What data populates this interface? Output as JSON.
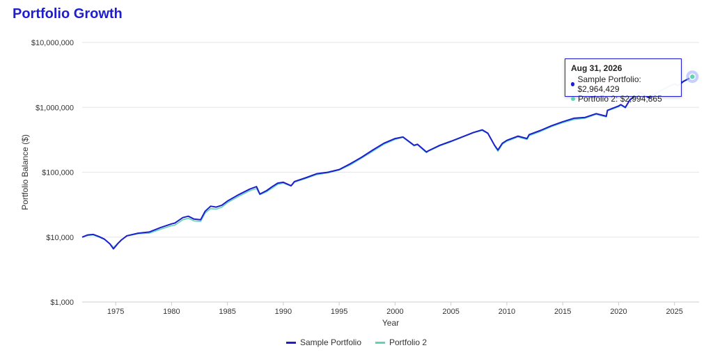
{
  "title": "Portfolio Growth",
  "colors": {
    "title": "#1e1ecf",
    "series1": "#1e1ecf",
    "series2": "#5fd3b3",
    "grid": "#e6e6e6"
  },
  "tooltip": {
    "date": "Aug 31, 2026",
    "rows": [
      {
        "label": "Sample Portfolio: $2,964,429",
        "color": "#1e1ecf"
      },
      {
        "label": "Portfolio 2: $2,994,865",
        "color": "#5fd3b3"
      }
    ]
  },
  "legend": [
    {
      "label": "Sample Portfolio",
      "color": "#1e1ecf"
    },
    {
      "label": "Portfolio 2",
      "color": "#5fd3b3"
    }
  ],
  "chart_data": {
    "type": "line",
    "title": "Portfolio Growth",
    "xlabel": "Year",
    "ylabel": "Portfolio Balance ($)",
    "yscale": "log",
    "ylim": [
      1000,
      10000000
    ],
    "xlim": [
      1972,
      2027.2
    ],
    "yticks": [
      {
        "value": 1000,
        "label": "$1,000"
      },
      {
        "value": 10000,
        "label": "$10,000"
      },
      {
        "value": 100000,
        "label": "$100,000"
      },
      {
        "value": 1000000,
        "label": "$1,000,000"
      },
      {
        "value": 10000000,
        "label": "$10,000,000"
      }
    ],
    "xticks": [
      1975,
      1980,
      1985,
      1990,
      1995,
      2000,
      2005,
      2010,
      2015,
      2020,
      2025
    ],
    "grid": true,
    "legend_position": "bottom",
    "series": [
      {
        "name": "Sample Portfolio",
        "x": [
          1972.0,
          1972.5,
          1973.0,
          1973.5,
          1974.0,
          1974.5,
          1974.8,
          1975.2,
          1975.5,
          1976.0,
          1977.0,
          1978.0,
          1979.0,
          1980.0,
          1980.3,
          1981.0,
          1981.5,
          1982.0,
          1982.6,
          1983.0,
          1983.5,
          1984.0,
          1984.5,
          1985.0,
          1986.0,
          1987.0,
          1987.6,
          1987.9,
          1988.5,
          1989.0,
          1989.5,
          1990.0,
          1990.7,
          1991.0,
          1992.0,
          1993.0,
          1994.0,
          1995.0,
          1996.0,
          1997.0,
          1998.0,
          1999.0,
          2000.0,
          2000.7,
          2001.0,
          2001.7,
          2002.0,
          2002.8,
          2003.0,
          2004.0,
          2005.0,
          2006.0,
          2007.0,
          2007.8,
          2008.3,
          2008.9,
          2009.2,
          2009.6,
          2010.0,
          2011.0,
          2011.8,
          2012.0,
          2013.0,
          2014.0,
          2015.0,
          2016.0,
          2017.0,
          2018.0,
          2018.9,
          2019.0,
          2020.0,
          2020.2,
          2020.6,
          2021.0,
          2021.9,
          2022.2,
          2022.7,
          2023.0,
          2024.0,
          2025.0,
          2025.3,
          2025.8,
          2026.6
        ],
        "y": [
          10000,
          10800,
          11000,
          10200,
          9300,
          7800,
          6600,
          8000,
          9000,
          10500,
          11500,
          12000,
          14000,
          16000,
          16500,
          20000,
          21000,
          19000,
          18500,
          25000,
          30000,
          29000,
          31000,
          36000,
          45000,
          55000,
          60000,
          46000,
          52000,
          60000,
          68000,
          70000,
          62000,
          72000,
          82000,
          95000,
          100000,
          110000,
          135000,
          170000,
          220000,
          280000,
          330000,
          350000,
          320000,
          260000,
          270000,
          205000,
          215000,
          260000,
          300000,
          350000,
          410000,
          450000,
          400000,
          260000,
          220000,
          280000,
          310000,
          360000,
          330000,
          380000,
          440000,
          520000,
          600000,
          680000,
          700000,
          800000,
          730000,
          900000,
          1050000,
          1100000,
          1000000,
          1300000,
          1700000,
          1600000,
          1400000,
          1500000,
          1900000,
          2300000,
          2150000,
          2500000,
          2964429
        ]
      },
      {
        "name": "Portfolio 2",
        "x": [
          1972.0,
          1972.5,
          1973.0,
          1973.5,
          1974.0,
          1974.5,
          1974.8,
          1975.2,
          1975.5,
          1976.0,
          1977.0,
          1978.0,
          1979.0,
          1980.0,
          1980.3,
          1981.0,
          1981.5,
          1982.0,
          1982.6,
          1983.0,
          1983.5,
          1984.0,
          1984.5,
          1985.0,
          1986.0,
          1987.0,
          1987.6,
          1987.9,
          1988.5,
          1989.0,
          1989.5,
          1990.0,
          1990.7,
          1991.0,
          1992.0,
          1993.0,
          1994.0,
          1995.0,
          1996.0,
          1997.0,
          1998.0,
          1999.0,
          2000.0,
          2000.7,
          2001.0,
          2001.7,
          2002.0,
          2002.8,
          2003.0,
          2004.0,
          2005.0,
          2006.0,
          2007.0,
          2007.8,
          2008.3,
          2008.9,
          2009.2,
          2009.6,
          2010.0,
          2011.0,
          2011.8,
          2012.0,
          2013.0,
          2014.0,
          2015.0,
          2016.0,
          2017.0,
          2018.0,
          2018.9,
          2019.0,
          2020.0,
          2020.2,
          2020.6,
          2021.0,
          2021.9,
          2022.2,
          2022.7,
          2023.0,
          2024.0,
          2025.0,
          2025.3,
          2025.8,
          2026.6
        ],
        "y": [
          10000,
          10600,
          10800,
          10000,
          9200,
          7900,
          6900,
          8100,
          9100,
          10400,
          11300,
          11500,
          13200,
          15000,
          15300,
          18500,
          19500,
          17800,
          17500,
          23500,
          27500,
          27000,
          29000,
          34000,
          42500,
          52000,
          56000,
          45000,
          50000,
          57000,
          65000,
          68000,
          61000,
          70000,
          80000,
          92000,
          98000,
          108000,
          130000,
          165000,
          210000,
          270000,
          320000,
          345000,
          315000,
          255000,
          265000,
          200000,
          212000,
          255000,
          295000,
          345000,
          405000,
          440000,
          395000,
          255000,
          210000,
          270000,
          300000,
          350000,
          320000,
          365000,
          425000,
          505000,
          580000,
          650000,
          680000,
          780000,
          710000,
          880000,
          1020000,
          1080000,
          980000,
          1280000,
          1750000,
          1650000,
          1450000,
          1550000,
          1950000,
          2350000,
          2200000,
          2550000,
          2994865
        ]
      }
    ]
  }
}
